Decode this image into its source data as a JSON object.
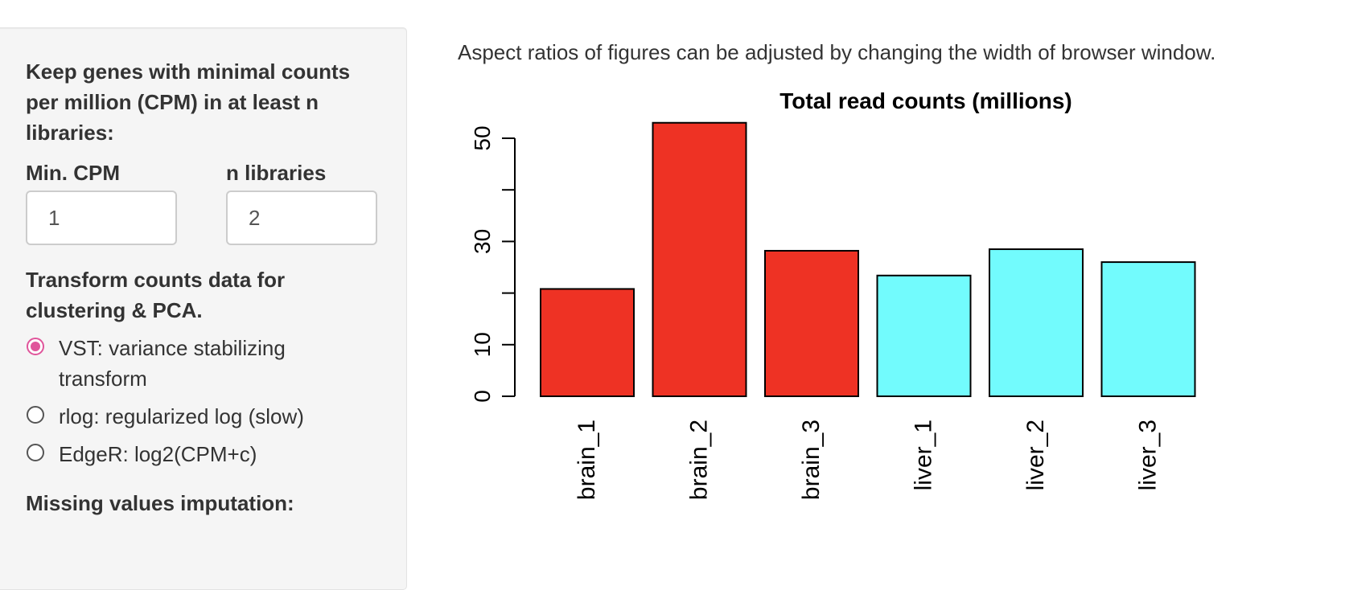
{
  "sidebar": {
    "filter_heading_lines": [
      "Keep genes with minimal counts",
      "per million (CPM) in at least n",
      "libraries:"
    ],
    "min_cpm_label": "Min. CPM",
    "min_cpm_value": "1",
    "n_libraries_label": "n libraries",
    "n_libraries_value": "2",
    "transform_heading_lines": [
      "Transform counts data for",
      "clustering & PCA."
    ],
    "transform_options": [
      {
        "label_lines": [
          "VST: variance stabilizing",
          "transform"
        ],
        "selected": true
      },
      {
        "label_lines": [
          "rlog: regularized log (slow)"
        ],
        "selected": false
      },
      {
        "label_lines": [
          "EdgeR: log2(CPM+c)"
        ],
        "selected": false
      }
    ],
    "missing_heading": "Missing values imputation:"
  },
  "main": {
    "note": "Aspect ratios of figures can be adjusted by changing the width of browser window."
  },
  "colors": {
    "brain": "#ee3224",
    "liver": "#72fbfd",
    "radio_accent": "#e0559b"
  },
  "chart_data": {
    "type": "bar",
    "title": "Total read counts (millions)",
    "categories": [
      "brain_1",
      "brain_2",
      "brain_3",
      "liver_1",
      "liver_2",
      "liver_3"
    ],
    "values": [
      20.8,
      53,
      28.2,
      23.4,
      28.5,
      26
    ],
    "bar_colors": [
      "#ee3224",
      "#ee3224",
      "#ee3224",
      "#72fbfd",
      "#72fbfd",
      "#72fbfd"
    ],
    "ylim": [
      0,
      50
    ],
    "yticks": [
      0,
      10,
      20,
      30,
      40,
      50
    ],
    "ytick_labels": [
      "0",
      "10",
      "",
      "30",
      "",
      "50"
    ],
    "xlabel": "",
    "ylabel": ""
  }
}
